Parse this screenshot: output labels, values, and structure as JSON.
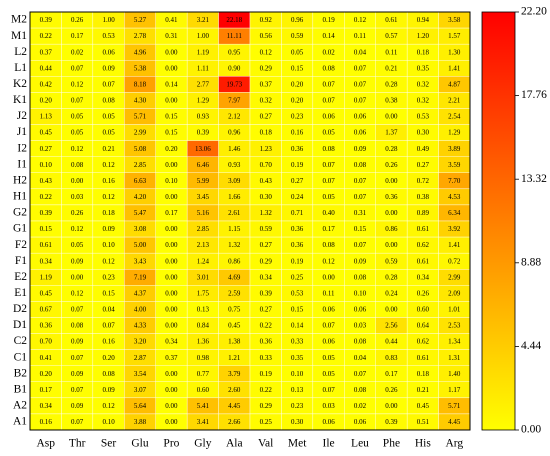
{
  "chart_data": {
    "type": "heatmap",
    "x_categories": [
      "Asp",
      "Thr",
      "Ser",
      "Glu",
      "Pro",
      "Gly",
      "Ala",
      "Val",
      "Met",
      "Ile",
      "Leu",
      "Phe",
      "His",
      "Arg"
    ],
    "y_categories": [
      "M2",
      "M1",
      "L2",
      "L1",
      "K2",
      "K1",
      "J2",
      "J1",
      "I2",
      "I1",
      "H2",
      "H1",
      "G2",
      "G1",
      "F2",
      "F1",
      "E2",
      "E1",
      "D2",
      "D1",
      "C2",
      "C1",
      "B2",
      "B1",
      "A2",
      "A1"
    ],
    "values": [
      [
        0.39,
        0.26,
        1.0,
        5.27,
        0.41,
        3.21,
        22.18,
        0.92,
        0.96,
        0.19,
        0.12,
        0.61,
        0.94,
        3.58
      ],
      [
        0.22,
        0.17,
        0.53,
        2.78,
        0.31,
        1.0,
        11.11,
        0.56,
        0.59,
        0.14,
        0.11,
        0.57,
        1.2,
        1.57
      ],
      [
        0.37,
        0.02,
        0.06,
        4.96,
        0.0,
        1.19,
        0.95,
        0.12,
        0.05,
        0.02,
        0.04,
        0.11,
        0.18,
        1.3
      ],
      [
        0.44,
        0.07,
        0.09,
        5.38,
        0.0,
        1.11,
        0.9,
        0.29,
        0.15,
        0.08,
        0.07,
        0.21,
        0.35,
        1.41
      ],
      [
        0.42,
        0.12,
        0.07,
        8.18,
        0.14,
        2.77,
        19.73,
        0.37,
        0.2,
        0.07,
        0.07,
        0.28,
        0.32,
        4.87
      ],
      [
        0.2,
        0.07,
        0.08,
        4.3,
        0.0,
        1.29,
        7.97,
        0.32,
        0.2,
        0.07,
        0.07,
        0.38,
        0.32,
        2.21
      ],
      [
        1.13,
        0.05,
        0.05,
        5.71,
        0.15,
        0.93,
        2.12,
        0.27,
        0.23,
        0.06,
        0.06,
        0.0,
        0.53,
        2.54
      ],
      [
        0.45,
        0.05,
        0.05,
        2.99,
        0.15,
        0.39,
        0.96,
        0.18,
        0.16,
        0.05,
        0.06,
        1.37,
        0.3,
        1.29
      ],
      [
        0.27,
        0.12,
        0.21,
        5.08,
        0.2,
        13.06,
        1.46,
        1.23,
        0.36,
        0.08,
        0.09,
        0.28,
        0.49,
        3.89
      ],
      [
        0.1,
        0.08,
        0.12,
        2.85,
        0.0,
        6.46,
        0.93,
        0.7,
        0.19,
        0.07,
        0.08,
        0.26,
        0.27,
        3.59
      ],
      [
        0.43,
        0.0,
        0.16,
        6.63,
        0.1,
        5.99,
        3.09,
        0.43,
        0.27,
        0.07,
        0.07,
        0.0,
        0.72,
        7.7
      ],
      [
        0.22,
        0.03,
        0.12,
        4.2,
        0.0,
        3.45,
        1.66,
        0.3,
        0.24,
        0.05,
        0.07,
        0.36,
        0.38,
        4.53
      ],
      [
        0.39,
        0.26,
        0.18,
        5.47,
        0.17,
        5.16,
        2.61,
        1.32,
        0.71,
        0.4,
        0.31,
        0.0,
        0.89,
        6.34
      ],
      [
        0.15,
        0.12,
        0.09,
        3.08,
        0.0,
        2.85,
        1.15,
        0.59,
        0.36,
        0.17,
        0.15,
        0.86,
        0.61,
        3.92
      ],
      [
        0.61,
        0.05,
        0.1,
        5.0,
        0.0,
        2.13,
        1.32,
        0.27,
        0.36,
        0.08,
        0.07,
        0.0,
        0.62,
        1.41
      ],
      [
        0.34,
        0.09,
        0.12,
        3.43,
        0.0,
        1.24,
        0.86,
        0.29,
        0.19,
        0.12,
        0.09,
        0.59,
        0.61,
        0.72
      ],
      [
        1.19,
        0.0,
        0.23,
        7.19,
        0.0,
        3.01,
        4.69,
        0.34,
        0.25,
        0.0,
        0.08,
        0.28,
        0.34,
        2.99
      ],
      [
        0.45,
        0.12,
        0.15,
        4.37,
        0.0,
        1.75,
        2.59,
        0.39,
        0.53,
        0.11,
        0.1,
        0.24,
        0.26,
        2.09
      ],
      [
        0.67,
        0.07,
        0.04,
        4.0,
        0.0,
        0.13,
        0.75,
        0.27,
        0.15,
        0.06,
        0.06,
        0.0,
        0.6,
        1.01
      ],
      [
        0.36,
        0.08,
        0.07,
        4.33,
        0.0,
        0.84,
        0.45,
        0.22,
        0.14,
        0.07,
        0.03,
        2.56,
        0.64,
        2.53
      ],
      [
        0.7,
        0.09,
        0.16,
        3.2,
        0.34,
        1.36,
        1.38,
        0.36,
        0.33,
        0.06,
        0.08,
        0.44,
        0.62,
        1.34
      ],
      [
        0.41,
        0.07,
        0.2,
        2.87,
        0.37,
        0.98,
        1.21,
        0.33,
        0.35,
        0.05,
        0.04,
        0.83,
        0.61,
        1.31
      ],
      [
        0.2,
        0.09,
        0.08,
        3.54,
        0.0,
        0.77,
        3.79,
        0.19,
        0.1,
        0.05,
        0.07,
        0.17,
        0.18,
        1.4
      ],
      [
        0.17,
        0.07,
        0.09,
        3.07,
        0.0,
        0.6,
        2.6,
        0.22,
        0.13,
        0.07,
        0.08,
        0.26,
        0.21,
        1.17
      ],
      [
        0.34,
        0.09,
        0.12,
        5.64,
        0.0,
        5.41,
        4.45,
        0.29,
        0.23,
        0.03,
        0.02,
        0.0,
        0.45,
        5.71
      ],
      [
        0.16,
        0.07,
        0.1,
        3.88,
        0.0,
        3.41,
        2.66,
        0.25,
        0.3,
        0.06,
        0.06,
        0.39,
        0.51,
        4.45
      ]
    ],
    "value_labels": [
      [
        "0.39",
        "0.26",
        "1.00",
        "5.27",
        "0.41",
        "3.21",
        "22.18",
        "0.92",
        "0.96",
        "0.19",
        "0.12",
        "0.61",
        "0.94",
        "3.58"
      ],
      [
        "0.22",
        "0.17",
        "0.53",
        "2.78",
        "0.31",
        "1.00",
        "11.11",
        "0.56",
        "0.59",
        "0.14",
        "0.11",
        "0.57",
        "1.20",
        "1.57"
      ],
      [
        "0.37",
        "0.02",
        "0.06",
        "4.96",
        "0.00",
        "1.19",
        "0.95",
        "0.12",
        "0.05",
        "0.02",
        "0.04",
        "0.11",
        "0.18",
        "1.30"
      ],
      [
        "0.44",
        "0.07",
        "0.09",
        "5.38",
        "0.00",
        "1.11",
        "0.90",
        "0.29",
        "0.15",
        "0.08",
        "0.07",
        "0.21",
        "0.35",
        "1.41"
      ],
      [
        "0.42",
        "0.12",
        "0.07",
        "8.18",
        "0.14",
        "2.77",
        "19.73",
        "0.37",
        "0.20",
        "0.07",
        "0.07",
        "0.28",
        "0.32",
        "4.87"
      ],
      [
        "0.20",
        "0.07",
        "0.08",
        "4.30",
        "0.00",
        "1.29",
        "7.97",
        "0.32",
        "0.20",
        "0.07",
        "0.07",
        "0.38",
        "0.32",
        "2.21"
      ],
      [
        "1.13",
        "0.05",
        "0.05",
        "5.71",
        "0.15",
        "0.93",
        "2.12",
        "0.27",
        "0.23",
        "0.06",
        "0.06",
        "0.00",
        "0.53",
        "2.54"
      ],
      [
        "0.45",
        "0.05",
        "0.05",
        "2.99",
        "0.15",
        "0.39",
        "0.96",
        "0.18",
        "0.16",
        "0.05",
        "0.06",
        "1.37",
        "0.30",
        "1.29"
      ],
      [
        "0.27",
        "0.12",
        "0.21",
        "5.08",
        "0.20",
        "13.06",
        "1.46",
        "1.23",
        "0.36",
        "0.08",
        "0.09",
        "0.28",
        "0.49",
        "3.89"
      ],
      [
        "0.10",
        "0.08",
        "0.12",
        "2.85",
        "0.00",
        "6.46",
        "0.93",
        "0.70",
        "0.19",
        "0.07",
        "0.08",
        "0.26",
        "0.27",
        "3.59"
      ],
      [
        "0.43",
        "0.00",
        "0.16",
        "6.63",
        "0.10",
        "5.99",
        "3.09",
        "0.43",
        "0.27",
        "0.07",
        "0.07",
        "0.00",
        "0.72",
        "7.70"
      ],
      [
        "0.22",
        "0.03",
        "0.12",
        "4.20",
        "0.00",
        "3.45",
        "1.66",
        "0.30",
        "0.24",
        "0.05",
        "0.07",
        "0.36",
        "0.38",
        "4.53"
      ],
      [
        "0.39",
        "0.26",
        "0.18",
        "5.47",
        "0.17",
        "5.16",
        "2.61",
        "1.32",
        "0.71",
        "0.40",
        "0.31",
        "0.00",
        "0.89",
        "6.34"
      ],
      [
        "0.15",
        "0.12",
        "0.09",
        "3.08",
        "0.00",
        "2.85",
        "1.15",
        "0.59",
        "0.36",
        "0.17",
        "0.15",
        "0.86",
        "0.61",
        "3.92"
      ],
      [
        "0.61",
        "0.05",
        "0.10",
        "5.00",
        "0.00",
        "2.13",
        "1.32",
        "0.27",
        "0.36",
        "0.08",
        "0.07",
        "0.00",
        "0.62",
        "1.41"
      ],
      [
        "0.34",
        "0.09",
        "0.12",
        "3.43",
        "0.00",
        "1.24",
        "0.86",
        "0.29",
        "0.19",
        "0.12",
        "0.09",
        "0.59",
        "0.61",
        "0.72"
      ],
      [
        "1.19",
        "0.00",
        "0.23",
        "7.19",
        "0.00",
        "3.01",
        "4.69",
        "0.34",
        "0.25",
        "0.00",
        "0.08",
        "0.28",
        "0.34",
        "2.99"
      ],
      [
        "0.45",
        "0.12",
        "0.15",
        "4.37",
        "0.00",
        "1.75",
        "2.59",
        "0.39",
        "0.53",
        "0.11",
        "0.10",
        "0.24",
        "0.26",
        "2.09"
      ],
      [
        "0.67",
        "0.07",
        "0.04",
        "4.00",
        "0.00",
        "0.13",
        "0.75",
        "0.27",
        "0.15",
        "0.06",
        "0.06",
        "0.00",
        "0.60",
        "1.01"
      ],
      [
        "0.36",
        "0.08",
        "0.07",
        "4.33",
        "0.00",
        "0.84",
        "0.45",
        "0.22",
        "0.14",
        "0.07",
        "0.03",
        "2.56",
        "0.64",
        "2.53"
      ],
      [
        "0.70",
        "0.09",
        "0.16",
        "3.20",
        "0.34",
        "1.36",
        "1.38",
        "0.36",
        "0.33",
        "0.06",
        "0.08",
        "0.44",
        "0.62",
        "1.34"
      ],
      [
        "0.41",
        "0.07",
        "0.20",
        "2.87",
        "0.37",
        "0.98",
        "1.21",
        "0.33",
        "0.35",
        "0.05",
        "0.04",
        "0.83",
        "0.61",
        "1.31"
      ],
      [
        "0.20",
        "0.09",
        "0.08",
        "3.54",
        "0.00",
        "0.77",
        "3.79",
        "0.19",
        "0.10",
        "0.05",
        "0.07",
        "0.17",
        "0.18",
        "1.40"
      ],
      [
        "0.17",
        "0.07",
        "0.09",
        "3.07",
        "0.00",
        "0.60",
        "2.60",
        "0.22",
        "0.13",
        "0.07",
        "0.08",
        "0.26",
        "0.21",
        "1.17"
      ],
      [
        "0.34",
        "0.09",
        "0.12",
        "5.64",
        "0.00",
        "5.41",
        "4.45",
        "0.29",
        "0.23",
        "0.03",
        "0.02",
        "0.00",
        "0.45",
        "5.71"
      ],
      [
        "0.16",
        "0.07",
        "0.10",
        "3.88",
        "0.00",
        "3.41",
        "2.66",
        "0.25",
        "0.30",
        "0.06",
        "0.06",
        "0.39",
        "0.51",
        "4.45"
      ]
    ],
    "colors": [
      "#ffff00",
      "#ff0000"
    ],
    "clim": [
      0,
      22.2
    ],
    "cticks": [
      {
        "value": 0,
        "label": "0.00"
      },
      4.44,
      8.88,
      13.32,
      17.76,
      {
        "value": 22.2,
        "label": "22.20"
      }
    ]
  }
}
